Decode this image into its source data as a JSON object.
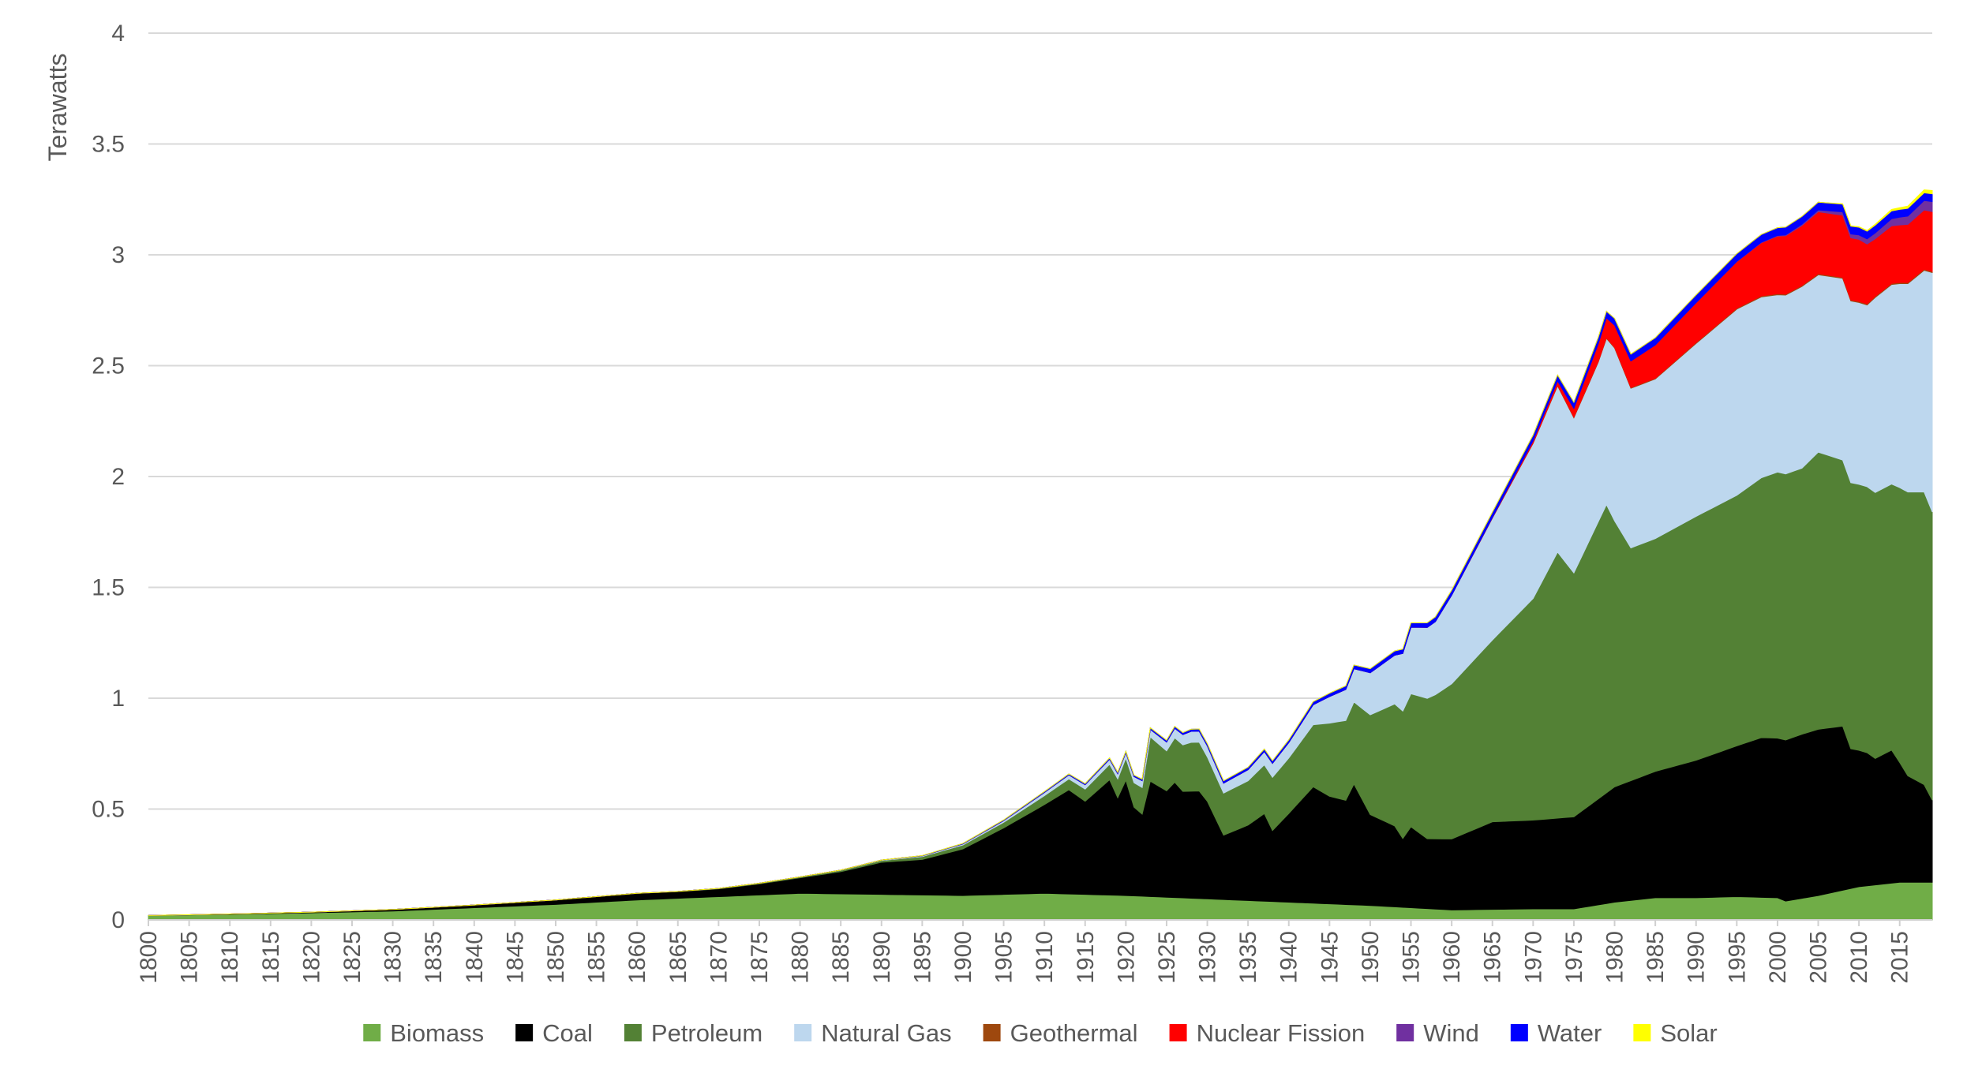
{
  "chart_data": {
    "type": "area",
    "stacked": true,
    "title": "",
    "xlabel": "",
    "ylabel": "Terawatts",
    "xlim": [
      1800,
      2019
    ],
    "ylim": [
      0,
      4
    ],
    "yticks": [
      0,
      0.5,
      1,
      1.5,
      2,
      2.5,
      3,
      3.5,
      4
    ],
    "ytick_labels": [
      "0",
      "0.5",
      "1",
      "1.5",
      "2",
      "2.5",
      "3",
      "3.5",
      "4"
    ],
    "xticks": [
      1800,
      1805,
      1810,
      1815,
      1820,
      1825,
      1830,
      1835,
      1840,
      1845,
      1850,
      1855,
      1860,
      1865,
      1870,
      1875,
      1880,
      1885,
      1890,
      1895,
      1900,
      1905,
      1910,
      1915,
      1920,
      1925,
      1930,
      1935,
      1940,
      1945,
      1950,
      1955,
      1960,
      1965,
      1970,
      1975,
      1980,
      1985,
      1990,
      1995,
      2000,
      2005,
      2010,
      2015
    ],
    "grid": true,
    "legend_position": "bottom",
    "series": [
      {
        "name": "Biomass",
        "color": "#70ad47",
        "points": [
          [
            1800,
            0.02
          ],
          [
            1810,
            0.025
          ],
          [
            1820,
            0.032
          ],
          [
            1830,
            0.04
          ],
          [
            1840,
            0.055
          ],
          [
            1850,
            0.07
          ],
          [
            1860,
            0.09
          ],
          [
            1870,
            0.105
          ],
          [
            1880,
            0.12
          ],
          [
            1890,
            0.115
          ],
          [
            1900,
            0.11
          ],
          [
            1910,
            0.12
          ],
          [
            1920,
            0.11
          ],
          [
            1930,
            0.095
          ],
          [
            1940,
            0.08
          ],
          [
            1950,
            0.065
          ],
          [
            1960,
            0.045
          ],
          [
            1970,
            0.05
          ],
          [
            1975,
            0.05
          ],
          [
            1980,
            0.08
          ],
          [
            1985,
            0.1
          ],
          [
            1990,
            0.1
          ],
          [
            1995,
            0.105
          ],
          [
            2000,
            0.1
          ],
          [
            2001,
            0.085
          ],
          [
            2005,
            0.11
          ],
          [
            2010,
            0.15
          ],
          [
            2015,
            0.17
          ],
          [
            2019,
            0.17
          ]
        ]
      },
      {
        "name": "Coal",
        "color": "#000000",
        "points": [
          [
            1800,
            0
          ],
          [
            1820,
            0.003
          ],
          [
            1830,
            0.007
          ],
          [
            1840,
            0.012
          ],
          [
            1850,
            0.02
          ],
          [
            1860,
            0.03
          ],
          [
            1865,
            0.03
          ],
          [
            1870,
            0.035
          ],
          [
            1875,
            0.05
          ],
          [
            1880,
            0.07
          ],
          [
            1885,
            0.1
          ],
          [
            1890,
            0.145
          ],
          [
            1895,
            0.16
          ],
          [
            1900,
            0.21
          ],
          [
            1905,
            0.3
          ],
          [
            1908,
            0.36
          ],
          [
            1910,
            0.4
          ],
          [
            1913,
            0.47
          ],
          [
            1915,
            0.42
          ],
          [
            1918,
            0.52
          ],
          [
            1919,
            0.44
          ],
          [
            1920,
            0.52
          ],
          [
            1921,
            0.4
          ],
          [
            1922,
            0.37
          ],
          [
            1923,
            0.52
          ],
          [
            1925,
            0.48
          ],
          [
            1926,
            0.52
          ],
          [
            1927,
            0.48
          ],
          [
            1929,
            0.485
          ],
          [
            1930,
            0.44
          ],
          [
            1932,
            0.29
          ],
          [
            1935,
            0.34
          ],
          [
            1937,
            0.395
          ],
          [
            1938,
            0.32
          ],
          [
            1940,
            0.4
          ],
          [
            1943,
            0.525
          ],
          [
            1945,
            0.485
          ],
          [
            1947,
            0.47
          ],
          [
            1948,
            0.545
          ],
          [
            1950,
            0.41
          ],
          [
            1952,
            0.38
          ],
          [
            1953,
            0.365
          ],
          [
            1954,
            0.31
          ],
          [
            1955,
            0.365
          ],
          [
            1957,
            0.315
          ],
          [
            1960,
            0.32
          ],
          [
            1965,
            0.395
          ],
          [
            1970,
            0.4
          ],
          [
            1975,
            0.415
          ],
          [
            1980,
            0.52
          ],
          [
            1985,
            0.57
          ],
          [
            1990,
            0.62
          ],
          [
            1995,
            0.68
          ],
          [
            1998,
            0.72
          ],
          [
            2000,
            0.72
          ],
          [
            2003,
            0.74
          ],
          [
            2005,
            0.75
          ],
          [
            2008,
            0.74
          ],
          [
            2009,
            0.63
          ],
          [
            2011,
            0.6
          ],
          [
            2012,
            0.57
          ],
          [
            2014,
            0.6
          ],
          [
            2016,
            0.48
          ],
          [
            2018,
            0.44
          ],
          [
            2019,
            0.37
          ]
        ]
      },
      {
        "name": "Petroleum",
        "color": "#538135",
        "points": [
          [
            1800,
            0
          ],
          [
            1860,
            0
          ],
          [
            1870,
            0.002
          ],
          [
            1880,
            0.004
          ],
          [
            1890,
            0.008
          ],
          [
            1900,
            0.018
          ],
          [
            1905,
            0.025
          ],
          [
            1910,
            0.04
          ],
          [
            1915,
            0.055
          ],
          [
            1918,
            0.07
          ],
          [
            1920,
            0.1
          ],
          [
            1921,
            0.11
          ],
          [
            1922,
            0.12
          ],
          [
            1923,
            0.2
          ],
          [
            1925,
            0.18
          ],
          [
            1926,
            0.2
          ],
          [
            1928,
            0.22
          ],
          [
            1929,
            0.22
          ],
          [
            1930,
            0.2
          ],
          [
            1932,
            0.19
          ],
          [
            1935,
            0.2
          ],
          [
            1937,
            0.22
          ],
          [
            1938,
            0.24
          ],
          [
            1940,
            0.25
          ],
          [
            1943,
            0.28
          ],
          [
            1945,
            0.33
          ],
          [
            1947,
            0.36
          ],
          [
            1948,
            0.37
          ],
          [
            1950,
            0.45
          ],
          [
            1953,
            0.55
          ],
          [
            1955,
            0.6
          ],
          [
            1958,
            0.65
          ],
          [
            1960,
            0.7
          ],
          [
            1965,
            0.82
          ],
          [
            1970,
            1.0
          ],
          [
            1973,
            1.2
          ],
          [
            1975,
            1.1
          ],
          [
            1979,
            1.3
          ],
          [
            1980,
            1.2
          ],
          [
            1982,
            1.05
          ],
          [
            1985,
            1.05
          ],
          [
            1990,
            1.1
          ],
          [
            1995,
            1.13
          ],
          [
            2000,
            1.2
          ],
          [
            2003,
            1.2
          ],
          [
            2005,
            1.25
          ],
          [
            2008,
            1.2
          ],
          [
            2009,
            1.2
          ],
          [
            2011,
            1.2
          ],
          [
            2012,
            1.2
          ],
          [
            2014,
            1.2
          ],
          [
            2016,
            1.28
          ],
          [
            2018,
            1.32
          ],
          [
            2019,
            1.3
          ]
        ]
      },
      {
        "name": "Natural Gas",
        "color": "#bdd7ee",
        "points": [
          [
            1800,
            0
          ],
          [
            1880,
            0
          ],
          [
            1890,
            0.002
          ],
          [
            1900,
            0.005
          ],
          [
            1905,
            0.008
          ],
          [
            1910,
            0.015
          ],
          [
            1915,
            0.02
          ],
          [
            1920,
            0.025
          ],
          [
            1925,
            0.04
          ],
          [
            1928,
            0.05
          ],
          [
            1930,
            0.05
          ],
          [
            1932,
            0.045
          ],
          [
            1935,
            0.05
          ],
          [
            1937,
            0.06
          ],
          [
            1940,
            0.07
          ],
          [
            1943,
            0.09
          ],
          [
            1945,
            0.12
          ],
          [
            1947,
            0.14
          ],
          [
            1948,
            0.15
          ],
          [
            1950,
            0.19
          ],
          [
            1953,
            0.22
          ],
          [
            1955,
            0.3
          ],
          [
            1958,
            0.33
          ],
          [
            1960,
            0.4
          ],
          [
            1965,
            0.55
          ],
          [
            1970,
            0.7
          ],
          [
            1973,
            0.75
          ],
          [
            1975,
            0.7
          ],
          [
            1978,
            0.72
          ],
          [
            1980,
            0.78
          ],
          [
            1982,
            0.72
          ],
          [
            1985,
            0.72
          ],
          [
            1990,
            0.78
          ],
          [
            1995,
            0.84
          ],
          [
            2000,
            0.8
          ],
          [
            2003,
            0.82
          ],
          [
            2005,
            0.8
          ],
          [
            2008,
            0.82
          ],
          [
            2009,
            0.82
          ],
          [
            2011,
            0.82
          ],
          [
            2012,
            0.88
          ],
          [
            2014,
            0.9
          ],
          [
            2016,
            0.94
          ],
          [
            2018,
            1.0
          ],
          [
            2019,
            1.08
          ]
        ]
      },
      {
        "name": "Geothermal",
        "color": "#9e480e",
        "points": [
          [
            1800,
            0
          ],
          [
            1960,
            0
          ],
          [
            1970,
            0.002
          ],
          [
            1990,
            0.004
          ],
          [
            2019,
            0.005
          ]
        ]
      },
      {
        "name": "Nuclear Fission",
        "color": "#ff0000",
        "points": [
          [
            1800,
            0
          ],
          [
            1960,
            0
          ],
          [
            1965,
            0.002
          ],
          [
            1970,
            0.01
          ],
          [
            1973,
            0.02
          ],
          [
            1975,
            0.04
          ],
          [
            1978,
            0.08
          ],
          [
            1980,
            0.1
          ],
          [
            1982,
            0.12
          ],
          [
            1985,
            0.15
          ],
          [
            1990,
            0.18
          ],
          [
            1995,
            0.21
          ],
          [
            2000,
            0.26
          ],
          [
            2003,
            0.27
          ],
          [
            2005,
            0.28
          ],
          [
            2008,
            0.28
          ],
          [
            2010,
            0.28
          ],
          [
            2012,
            0.26
          ],
          [
            2015,
            0.26
          ],
          [
            2019,
            0.27
          ]
        ]
      },
      {
        "name": "Wind",
        "color": "#7030a0",
        "points": [
          [
            1800,
            0
          ],
          [
            1990,
            0
          ],
          [
            1995,
            0.001
          ],
          [
            2000,
            0.003
          ],
          [
            2005,
            0.008
          ],
          [
            2010,
            0.02
          ],
          [
            2015,
            0.035
          ],
          [
            2019,
            0.045
          ]
        ]
      },
      {
        "name": "Water",
        "color": "#0000ff",
        "points": [
          [
            1800,
            0
          ],
          [
            1890,
            0
          ],
          [
            1900,
            0.002
          ],
          [
            1910,
            0.004
          ],
          [
            1920,
            0.006
          ],
          [
            1930,
            0.01
          ],
          [
            1940,
            0.012
          ],
          [
            1950,
            0.018
          ],
          [
            1960,
            0.022
          ],
          [
            1970,
            0.025
          ],
          [
            1980,
            0.03
          ],
          [
            1990,
            0.035
          ],
          [
            2000,
            0.035
          ],
          [
            2010,
            0.035
          ],
          [
            2019,
            0.035
          ]
        ]
      },
      {
        "name": "Solar",
        "color": "#ffff00",
        "points": [
          [
            1800,
            0
          ],
          [
            2005,
            0
          ],
          [
            2010,
            0.002
          ],
          [
            2015,
            0.008
          ],
          [
            2019,
            0.015
          ]
        ]
      }
    ]
  }
}
